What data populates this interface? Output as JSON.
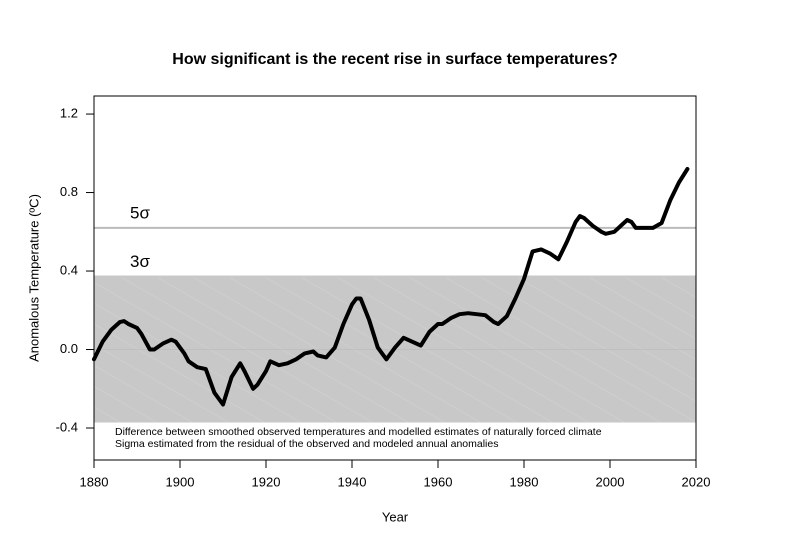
{
  "chart_data": {
    "type": "line",
    "title": "How significant is the recent rise in surface temperatures?",
    "x_label": "Year",
    "y_label": "Anomalous Temperature (ºC)",
    "annotations": [
      "Difference between smoothed observed temperatures and modelled estimates of naturally forced climate",
      "Sigma estimated from the residual of the observed and modeled annual anomalies"
    ],
    "sigma_lines": [
      {
        "label": "5σ",
        "value": 0.62,
        "color": "#bbbbbb"
      },
      {
        "label": "3σ",
        "value": 0.372,
        "color": "#c8c8c8"
      }
    ],
    "band": [
      -0.372,
      0.372
    ],
    "band_color": "#c8c8c8",
    "x": [
      1880,
      1882,
      1884,
      1886,
      1887,
      1888,
      1890,
      1891,
      1893,
      1894,
      1896,
      1898,
      1899,
      1901,
      1902,
      1904,
      1906,
      1908,
      1910,
      1912,
      1914,
      1915,
      1917,
      1918,
      1920,
      1921,
      1923,
      1925,
      1927,
      1929,
      1931,
      1932,
      1934,
      1936,
      1938,
      1940,
      1941,
      1942,
      1944,
      1946,
      1948,
      1950,
      1952,
      1954,
      1956,
      1958,
      1960,
      1961,
      1963,
      1965,
      1967,
      1969,
      1971,
      1973,
      1974,
      1976,
      1978,
      1980,
      1982,
      1984,
      1986,
      1988,
      1990,
      1992,
      1993,
      1994,
      1996,
      1998,
      1999,
      2001,
      2003,
      2004,
      2005,
      2006,
      2008,
      2010,
      2012,
      2014,
      2016,
      2018
    ],
    "series": [
      {
        "color": "#000000",
        "values": [
          -0.05,
          0.04,
          0.1,
          0.14,
          0.145,
          0.13,
          0.11,
          0.08,
          0.0,
          0.0,
          0.03,
          0.05,
          0.04,
          -0.02,
          -0.06,
          -0.09,
          -0.1,
          -0.22,
          -0.28,
          -0.14,
          -0.07,
          -0.11,
          -0.2,
          -0.18,
          -0.11,
          -0.06,
          -0.08,
          -0.07,
          -0.05,
          -0.02,
          -0.01,
          -0.03,
          -0.04,
          0.01,
          0.13,
          0.23,
          0.26,
          0.26,
          0.15,
          0.01,
          -0.05,
          0.01,
          0.06,
          0.04,
          0.02,
          0.09,
          0.13,
          0.13,
          0.16,
          0.18,
          0.185,
          0.18,
          0.175,
          0.14,
          0.13,
          0.17,
          0.26,
          0.36,
          0.5,
          0.51,
          0.49,
          0.46,
          0.55,
          0.65,
          0.68,
          0.67,
          0.63,
          0.6,
          0.59,
          0.6,
          0.64,
          0.66,
          0.65,
          0.62,
          0.62,
          0.62,
          0.645,
          0.76,
          0.85,
          0.92
        ]
      }
    ],
    "xlim": [
      1880,
      2020
    ],
    "xticks": [
      1880,
      1900,
      1920,
      1940,
      1960,
      1980,
      2000,
      2020
    ],
    "ylim": [
      -0.563,
      1.292
    ],
    "yticks": [
      -0.4,
      {
        "value": 0,
        "label": "0.0"
      },
      0.4,
      0.8,
      1.2
    ]
  }
}
